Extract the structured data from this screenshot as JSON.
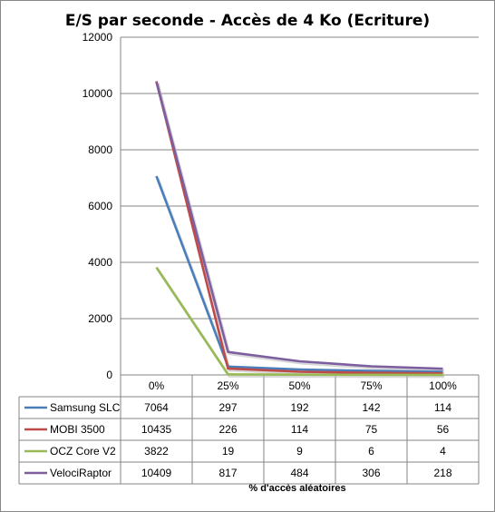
{
  "chart_data": {
    "type": "line",
    "title": "E/S par seconde - Accès de 4 Ko (Ecriture)",
    "xlabel": "% d'accès aléatoires",
    "ylabel": "",
    "categories": [
      "0%",
      "25%",
      "50%",
      "75%",
      "100%"
    ],
    "ylim": [
      0,
      12000
    ],
    "yticks": [
      "0",
      "2000",
      "4000",
      "6000",
      "8000",
      "10000",
      "12000"
    ],
    "grid": true,
    "legend": "data-table",
    "series": [
      {
        "name": "Samsung SLC",
        "color": "#4a7ebb",
        "values": [
          7064,
          297,
          192,
          142,
          114
        ]
      },
      {
        "name": "MOBI 3500",
        "color": "#be4b48",
        "values": [
          10435,
          226,
          114,
          75,
          56
        ]
      },
      {
        "name": "OCZ Core V2",
        "color": "#98b954",
        "values": [
          3822,
          19,
          9,
          6,
          4
        ]
      },
      {
        "name": "VelociRaptor",
        "color": "#7d5fa0",
        "values": [
          10409,
          817,
          484,
          306,
          218
        ]
      }
    ]
  }
}
